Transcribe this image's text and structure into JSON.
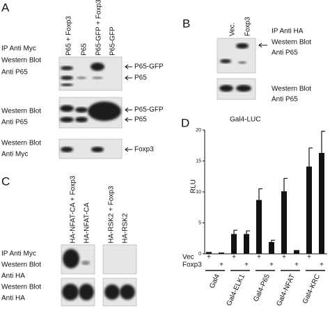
{
  "panel_a": {
    "label": "A",
    "lanes": [
      "P65 + Foxp3",
      "P65",
      "P65-GFP + Foxp3",
      "P65-GFP"
    ],
    "blots": [
      {
        "labels": [
          "IP Anti Myc",
          "Western Blot",
          "Anti P65"
        ],
        "bands": [
          "P65-GFP",
          "P65"
        ]
      },
      {
        "labels": [
          "Western Blot",
          "Anti P65"
        ],
        "bands": [
          "P65-GFP",
          "P65"
        ]
      },
      {
        "labels": [
          "Western Blot",
          "Anti Myc"
        ],
        "bands": [
          "Foxp3"
        ]
      }
    ]
  },
  "panel_b": {
    "label": "B",
    "lanes": [
      "Vec.",
      "Foxp3"
    ],
    "blots": [
      {
        "labels": [
          "IP Anti HA",
          "Western Blot",
          "Anti P65"
        ]
      },
      {
        "labels": [
          "Western Blot",
          "Anti P65"
        ]
      }
    ]
  },
  "panel_c": {
    "label": "C",
    "lanes": [
      "HA-NFAT-CA + Foxp3",
      "HA-NFAT-CA",
      "HA-RSK2 + Foxp3",
      "HA-RSK2"
    ],
    "blots": [
      {
        "labels": [
          "IP Anti Myc",
          "Western Blot",
          "Anti HA"
        ]
      },
      {
        "labels": [
          "Western Blot",
          "Anti HA"
        ]
      }
    ]
  },
  "chart_data": {
    "type": "bar",
    "panel_label": "D",
    "title": "Gal4-LUC",
    "y_label": "RLU",
    "categories": [
      "Gal4",
      "Gal4-ELK1",
      "Gal4-P65",
      "Gal4-NFAT",
      "Gal4-KRC"
    ],
    "series": [
      {
        "name": "Vec",
        "color": "#111111",
        "values": [
          0.3,
          3.2,
          8.7,
          10.1,
          14.1
        ],
        "errors": [
          null,
          0.6,
          1.8,
          2.1,
          3.0
        ]
      },
      {
        "name": "Foxp3",
        "color": "#111111",
        "values": [
          0.2,
          3.2,
          1.9,
          0.6,
          16.3
        ],
        "errors": [
          null,
          0.5,
          0.3,
          null,
          3.5
        ]
      }
    ],
    "condition_symbol": "+",
    "ylim": [
      0,
      20
    ],
    "yticks": [
      0,
      5,
      10,
      15,
      20
    ]
  }
}
